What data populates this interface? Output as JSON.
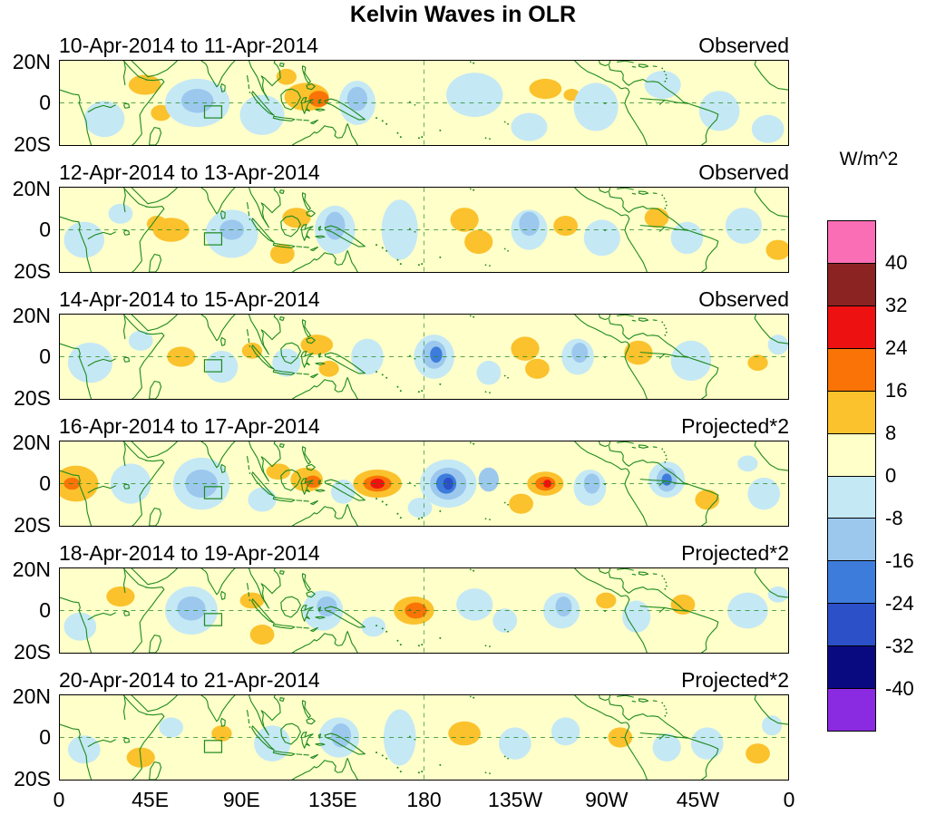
{
  "title": "Kelvin Waves in OLR",
  "colorbar": {
    "unit_label": "W/m^2",
    "tick_labels": [
      "40",
      "32",
      "24",
      "16",
      "8",
      "0",
      "-8",
      "-16",
      "-24",
      "-32",
      "-40"
    ],
    "colors_top_to_bottom": [
      "#FA6EB5",
      "#8B2323",
      "#EE1111",
      "#F97306",
      "#FBC22D",
      "#FFFFC9",
      "#C5E8F5",
      "#9CC8EE",
      "#3E7CDC",
      "#2C50C8",
      "#0A0A80",
      "#8A2BE2"
    ]
  },
  "axes": {
    "x_tick_labels": [
      "0",
      "45E",
      "90E",
      "135E",
      "180",
      "135W",
      "90W",
      "45W",
      "0"
    ],
    "y_tick_labels": [
      "20N",
      "0",
      "20S"
    ]
  },
  "chart_data": {
    "type": "heatmap",
    "title": "Kelvin Waves in OLR",
    "units": "W/m^2",
    "lon_range": [
      0,
      360
    ],
    "lat_range": [
      -21,
      21
    ],
    "contour_levels": [
      -40,
      -32,
      -24,
      -16,
      -8,
      0,
      8,
      16,
      24,
      32,
      40
    ],
    "coastline_color": "#1F8B1F",
    "palette": {
      "p0": "#FFFFC9",
      "p8": "#FBC22D",
      "p16": "#F97306",
      "p24": "#EE1111",
      "n0": "#C5E8F5",
      "n8": "#9CC8EE",
      "n16": "#3E7CDC",
      "n24": "#2C50C8"
    },
    "anomaly_format": [
      "lon_deg",
      "lat_deg",
      "radius_lon_deg",
      "radius_lat_deg",
      "level_key"
    ],
    "panels": [
      {
        "date_range": "10-Apr-2014 to 11-Apr-2014",
        "source": "Observed",
        "anomalies": [
          [
            22,
            -8,
            10,
            9,
            "n0"
          ],
          [
            42,
            9,
            8,
            5,
            "p8"
          ],
          [
            50,
            -5,
            5,
            4,
            "p8"
          ],
          [
            68,
            0,
            16,
            12,
            "n0"
          ],
          [
            68,
            1,
            8,
            6,
            "n8"
          ],
          [
            100,
            -6,
            11,
            10,
            "n0"
          ],
          [
            122,
            3,
            11,
            7,
            "p8"
          ],
          [
            128,
            2,
            5,
            4,
            "p16"
          ],
          [
            112,
            13,
            5,
            4,
            "p8"
          ],
          [
            147,
            0,
            9,
            11,
            "n0"
          ],
          [
            147,
            2,
            5,
            6,
            "n8"
          ],
          [
            205,
            4,
            14,
            11,
            "n0"
          ],
          [
            232,
            -12,
            9,
            7,
            "n0"
          ],
          [
            240,
            7,
            8,
            5,
            "p8"
          ],
          [
            253,
            4,
            4,
            3,
            "p8"
          ],
          [
            265,
            -2,
            11,
            12,
            "n0"
          ],
          [
            298,
            9,
            9,
            7,
            "n0"
          ],
          [
            326,
            -4,
            10,
            10,
            "n0"
          ],
          [
            350,
            -13,
            8,
            7,
            "n0"
          ]
        ]
      },
      {
        "date_range": "12-Apr-2014 to 13-Apr-2014",
        "source": "Observed",
        "anomalies": [
          [
            12,
            -5,
            10,
            9,
            "n0"
          ],
          [
            30,
            8,
            6,
            5,
            "n0"
          ],
          [
            55,
            0,
            9,
            6,
            "p8"
          ],
          [
            48,
            3,
            5,
            4,
            "p8"
          ],
          [
            85,
            -2,
            13,
            12,
            "n0"
          ],
          [
            85,
            0,
            6,
            5,
            "n8"
          ],
          [
            117,
            6,
            7,
            5,
            "p8"
          ],
          [
            110,
            -12,
            6,
            5,
            "p8"
          ],
          [
            136,
            0,
            10,
            12,
            "n0"
          ],
          [
            136,
            2,
            5,
            7,
            "n8"
          ],
          [
            168,
            0,
            9,
            15,
            "n0"
          ],
          [
            200,
            5,
            7,
            6,
            "p8"
          ],
          [
            207,
            -6,
            7,
            6,
            "p8"
          ],
          [
            232,
            0,
            9,
            10,
            "n0"
          ],
          [
            232,
            3,
            5,
            6,
            "n8"
          ],
          [
            250,
            2,
            6,
            5,
            "p8"
          ],
          [
            268,
            -4,
            9,
            9,
            "n0"
          ],
          [
            295,
            6,
            6,
            5,
            "p8"
          ],
          [
            310,
            -4,
            8,
            8,
            "n0"
          ],
          [
            338,
            2,
            9,
            9,
            "n0"
          ],
          [
            355,
            -10,
            6,
            5,
            "p8"
          ]
        ]
      },
      {
        "date_range": "14-Apr-2014 to 15-Apr-2014",
        "source": "Observed",
        "anomalies": [
          [
            15,
            -3,
            11,
            10,
            "n0"
          ],
          [
            40,
            8,
            6,
            5,
            "n0"
          ],
          [
            60,
            0,
            7,
            5,
            "p8"
          ],
          [
            80,
            -5,
            8,
            8,
            "n0"
          ],
          [
            95,
            3,
            5,
            4,
            "p8"
          ],
          [
            112,
            -3,
            7,
            7,
            "n0"
          ],
          [
            127,
            6,
            8,
            5,
            "p8"
          ],
          [
            133,
            -6,
            5,
            4,
            "p8"
          ],
          [
            152,
            0,
            8,
            9,
            "n0"
          ],
          [
            185,
            0,
            10,
            11,
            "n0"
          ],
          [
            185,
            1,
            6,
            7,
            "n8"
          ],
          [
            186,
            1,
            3,
            4,
            "n16"
          ],
          [
            212,
            -8,
            6,
            6,
            "n0"
          ],
          [
            230,
            4,
            7,
            6,
            "p8"
          ],
          [
            236,
            -6,
            6,
            5,
            "p8"
          ],
          [
            256,
            0,
            8,
            9,
            "n0"
          ],
          [
            257,
            2,
            4,
            5,
            "n8"
          ],
          [
            286,
            2,
            7,
            6,
            "p8"
          ],
          [
            312,
            -2,
            10,
            10,
            "n0"
          ],
          [
            345,
            -3,
            5,
            4,
            "p8"
          ],
          [
            355,
            6,
            5,
            5,
            "n0"
          ]
        ]
      },
      {
        "date_range": "16-Apr-2014 to 17-Apr-2014",
        "source": "Projected*2",
        "anomalies": [
          [
            8,
            0,
            11,
            9,
            "p8"
          ],
          [
            6,
            0,
            4,
            3,
            "p16"
          ],
          [
            35,
            0,
            10,
            10,
            "n0"
          ],
          [
            70,
            0,
            14,
            13,
            "n0"
          ],
          [
            70,
            0,
            8,
            7,
            "n8"
          ],
          [
            100,
            -8,
            7,
            6,
            "n0"
          ],
          [
            108,
            6,
            6,
            4,
            "p8"
          ],
          [
            122,
            2,
            8,
            6,
            "p8"
          ],
          [
            125,
            1,
            4,
            3,
            "p16"
          ],
          [
            140,
            -4,
            6,
            6,
            "n0"
          ],
          [
            157,
            0,
            12,
            7,
            "p8"
          ],
          [
            157,
            0,
            7,
            4,
            "p16"
          ],
          [
            157,
            0,
            3.5,
            2.5,
            "p24"
          ],
          [
            178,
            -12,
            6,
            5,
            "n0"
          ],
          [
            192,
            0,
            14,
            12,
            "n0"
          ],
          [
            192,
            0,
            9,
            8,
            "n8"
          ],
          [
            191,
            0,
            5,
            5,
            "n16"
          ],
          [
            192,
            0,
            2.5,
            3,
            "n24"
          ],
          [
            212,
            2,
            5,
            6,
            "n8"
          ],
          [
            228,
            -10,
            6,
            5,
            "p8"
          ],
          [
            240,
            0,
            9,
            6,
            "p8"
          ],
          [
            240,
            0,
            5,
            3.5,
            "p16"
          ],
          [
            241,
            0,
            2,
            2,
            "p24"
          ],
          [
            262,
            -2,
            8,
            9,
            "n0"
          ],
          [
            263,
            0,
            4,
            5,
            "n8"
          ],
          [
            300,
            2,
            9,
            9,
            "n0"
          ],
          [
            300,
            2,
            5,
            6,
            "n8"
          ],
          [
            300,
            2,
            2.5,
            3,
            "n16"
          ],
          [
            320,
            -8,
            6,
            5,
            "p8"
          ],
          [
            348,
            -5,
            8,
            8,
            "n0"
          ],
          [
            340,
            10,
            5,
            4,
            "n0"
          ]
        ]
      },
      {
        "date_range": "18-Apr-2014 to 19-Apr-2014",
        "source": "Projected*2",
        "anomalies": [
          [
            30,
            7,
            7,
            5,
            "p8"
          ],
          [
            10,
            -8,
            8,
            7,
            "n0"
          ],
          [
            65,
            0,
            13,
            12,
            "n0"
          ],
          [
            65,
            1,
            7,
            6,
            "n8"
          ],
          [
            95,
            5,
            6,
            4,
            "p8"
          ],
          [
            100,
            -12,
            6,
            5,
            "p8"
          ],
          [
            130,
            0,
            10,
            10,
            "n0"
          ],
          [
            132,
            2,
            5,
            5,
            "n8"
          ],
          [
            155,
            -8,
            6,
            5,
            "n0"
          ],
          [
            175,
            0,
            10,
            7,
            "p8"
          ],
          [
            176,
            0,
            5.5,
            4,
            "p16"
          ],
          [
            205,
            3,
            9,
            8,
            "n0"
          ],
          [
            220,
            -5,
            6,
            6,
            "n0"
          ],
          [
            248,
            0,
            9,
            9,
            "n0"
          ],
          [
            249,
            2,
            4,
            5,
            "n8"
          ],
          [
            270,
            5,
            5,
            4,
            "p8"
          ],
          [
            285,
            -3,
            7,
            8,
            "n0"
          ],
          [
            308,
            3,
            6,
            5,
            "p8"
          ],
          [
            340,
            0,
            10,
            9,
            "n0"
          ],
          [
            355,
            8,
            5,
            4,
            "n0"
          ]
        ]
      },
      {
        "date_range": "20-Apr-2014 to 21-Apr-2014",
        "source": "Projected*2",
        "anomalies": [
          [
            12,
            -6,
            8,
            7,
            "n0"
          ],
          [
            40,
            -10,
            7,
            5,
            "p8"
          ],
          [
            55,
            5,
            6,
            5,
            "n0"
          ],
          [
            80,
            2,
            5,
            4,
            "p8"
          ],
          [
            105,
            -3,
            9,
            9,
            "n0"
          ],
          [
            138,
            0,
            10,
            10,
            "n0"
          ],
          [
            139,
            1,
            5,
            6,
            "n8"
          ],
          [
            168,
            0,
            8,
            14,
            "n0"
          ],
          [
            200,
            2,
            8,
            6,
            "p8"
          ],
          [
            225,
            -3,
            8,
            8,
            "n0"
          ],
          [
            250,
            3,
            7,
            7,
            "n0"
          ],
          [
            277,
            0,
            6,
            5,
            "p8"
          ],
          [
            300,
            -5,
            7,
            7,
            "n0"
          ],
          [
            320,
            -3,
            8,
            8,
            "n0"
          ],
          [
            345,
            -8,
            6,
            5,
            "p8"
          ],
          [
            352,
            6,
            5,
            5,
            "n0"
          ]
        ]
      }
    ]
  }
}
